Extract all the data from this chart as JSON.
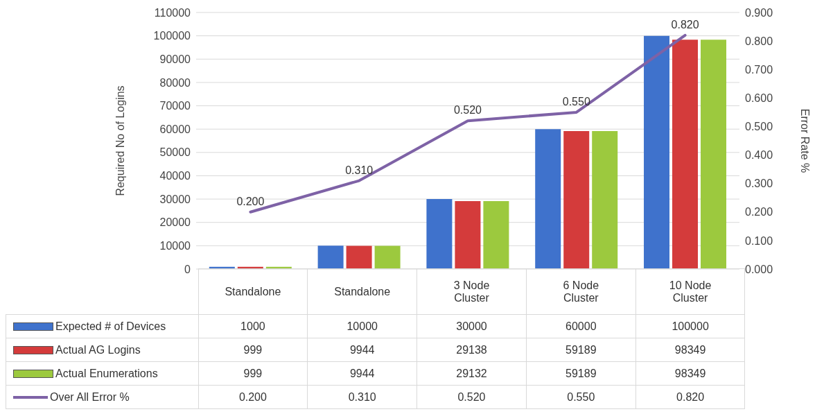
{
  "chart_data": {
    "type": "bar",
    "ylabel": "Required No of Logins",
    "y2label": "Error Rate %",
    "categories": [
      "Standalone",
      "Standalone",
      "3 Node Cluster",
      "6 Node Cluster",
      "10 Node Cluster"
    ],
    "series": [
      {
        "name": "Expected # of Devices",
        "color": "#3f72cc",
        "values": [
          1000,
          10000,
          30000,
          60000,
          100000
        ],
        "value_labels": [
          "1000",
          "10000",
          "30000",
          "60000",
          "100000"
        ]
      },
      {
        "name": "Actual AG Logins",
        "color": "#d43b3b",
        "values": [
          999,
          9944,
          29138,
          59189,
          98349
        ],
        "value_labels": [
          "999",
          "9944",
          "29138",
          "59189",
          "98349"
        ]
      },
      {
        "name": "Actual Enumerations",
        "color": "#9cc93e",
        "values": [
          999,
          9944,
          29132,
          59189,
          98349
        ],
        "value_labels": [
          "999",
          "9944",
          "29132",
          "59189",
          "98349"
        ]
      },
      {
        "name": "Over All Error %",
        "type": "line",
        "axis": "y2",
        "color": "#7e62a6",
        "values": [
          0.2,
          0.31,
          0.52,
          0.55,
          0.82
        ],
        "value_labels": [
          "0.200",
          "0.310",
          "0.520",
          "0.550",
          "0.820"
        ]
      }
    ],
    "ylim": [
      0,
      110000
    ],
    "yticks": [
      0,
      10000,
      20000,
      30000,
      40000,
      50000,
      60000,
      70000,
      80000,
      90000,
      100000,
      110000
    ],
    "y2lim": [
      0,
      0.9
    ],
    "y2ticks": [
      {
        "value": 0,
        "label": "0.000"
      },
      {
        "value": 0.1,
        "label": "0.100"
      },
      {
        "value": 0.2,
        "label": "0.200"
      },
      {
        "value": 0.3,
        "label": "0.300"
      },
      {
        "value": 0.4,
        "label": "0.400"
      },
      {
        "value": 0.5,
        "label": "0.500"
      },
      {
        "value": 0.6,
        "label": "0.600"
      },
      {
        "value": 0.7,
        "label": "0.700"
      },
      {
        "value": 0.8,
        "label": "0.800"
      },
      {
        "value": 0.9,
        "label": "0.900"
      }
    ],
    "grid": "y",
    "legend": "bottom left",
    "marker": "none",
    "line_style": "solid"
  }
}
